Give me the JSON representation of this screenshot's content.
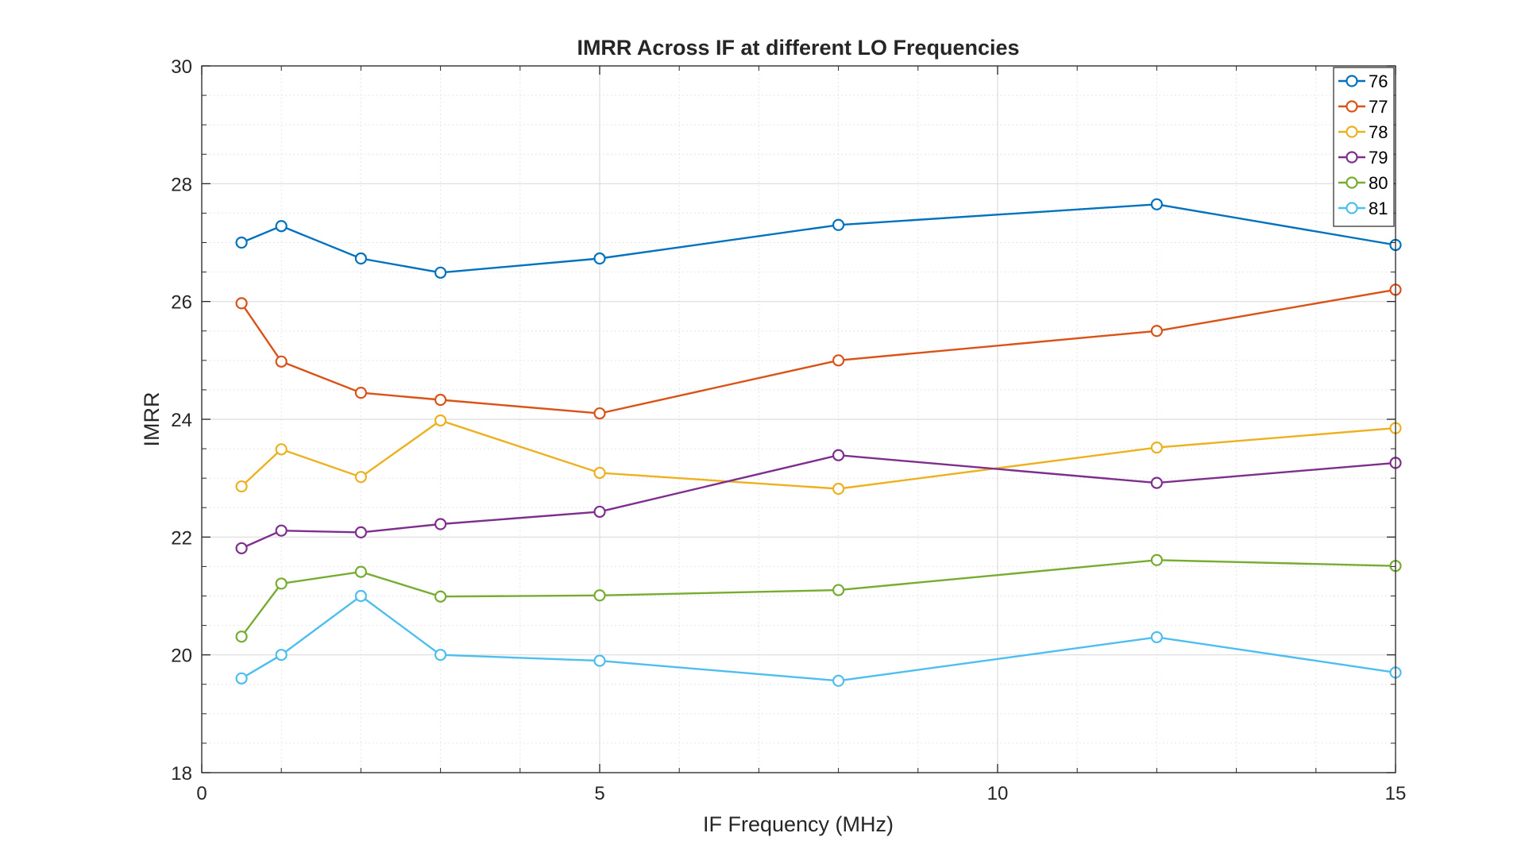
{
  "chart_data": {
    "type": "line",
    "title": "IMRR Across IF at different LO Frequencies",
    "xlabel": "IF Frequency (MHz)",
    "ylabel": "IMRR",
    "xlim": [
      0,
      15
    ],
    "ylim": [
      18,
      30
    ],
    "xticks": [
      "0",
      "5",
      "10",
      "15"
    ],
    "yticks": [
      "18",
      "20",
      "22",
      "24",
      "26",
      "28",
      "30"
    ],
    "grid": true,
    "minor_grid": true,
    "legend_position": "top-right",
    "x": [
      0.5,
      1,
      2,
      3,
      5,
      8,
      12,
      15
    ],
    "series": [
      {
        "name": "76",
        "color": "#0072BD",
        "values": [
          27.0,
          27.28,
          26.73,
          26.49,
          26.73,
          27.3,
          27.65,
          26.96
        ]
      },
      {
        "name": "77",
        "color": "#D95319",
        "values": [
          25.97,
          24.98,
          24.45,
          24.33,
          24.1,
          25.0,
          25.5,
          26.2
        ]
      },
      {
        "name": "78",
        "color": "#EDB120",
        "values": [
          22.86,
          23.49,
          23.02,
          23.98,
          23.09,
          22.82,
          23.52,
          23.85
        ]
      },
      {
        "name": "79",
        "color": "#7E2F8E",
        "values": [
          21.81,
          22.11,
          22.08,
          22.22,
          22.43,
          23.39,
          22.92,
          23.26
        ]
      },
      {
        "name": "80",
        "color": "#77AC30",
        "values": [
          20.31,
          21.21,
          21.41,
          20.99,
          21.01,
          21.1,
          21.61,
          21.51
        ]
      },
      {
        "name": "81",
        "color": "#4DBEEE",
        "values": [
          19.6,
          20.0,
          21.0,
          20.0,
          19.9,
          19.56,
          20.3,
          19.7
        ]
      }
    ]
  }
}
